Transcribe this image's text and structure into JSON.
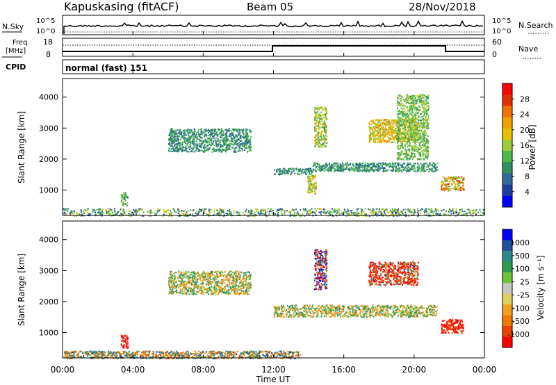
{
  "header": {
    "station": "Kapuskasing (fitACF)",
    "beam": "Beam 05",
    "date": "28/Nov/2018"
  },
  "noise_panel": {
    "left_label": "N.Sky",
    "right_label": "N.Search",
    "ytick_top": "10^5",
    "ytick_bottom": "10^0"
  },
  "freq_panel": {
    "left_label_1": "Freq.",
    "left_label_2": "[MHz]",
    "right_label": "Nave",
    "left_ticks": [
      "18",
      "8"
    ],
    "right_ticks": [
      "60",
      "0"
    ]
  },
  "cpid_panel": {
    "label": "CPID",
    "value": "normal (fast) 151"
  },
  "colors": {
    "power": [
      "#0000ff",
      "#1f3fa0",
      "#2f6a9a",
      "#2f8f5f",
      "#4db84d",
      "#9ccc3a",
      "#e6c200",
      "#f0a000",
      "#f07000",
      "#e03000",
      "#ff0000"
    ],
    "velocity": [
      "#0000ff",
      "#1f4f9f",
      "#2e8a8a",
      "#2f9a4f",
      "#6cc43c",
      "#c8c8c0",
      "#e0d060",
      "#f0a020",
      "#f07800",
      "#e84000",
      "#ff0000"
    ]
  },
  "chart_data": [
    {
      "type": "heatmap",
      "name": "power",
      "ylabel": "Slant Range [km]",
      "yticks": [
        "4000",
        "3000",
        "2000",
        "1000"
      ],
      "ylim": [
        180,
        4600
      ],
      "xlim_hours": [
        0,
        24
      ],
      "colorbar": {
        "label": "Power [dB]",
        "ticks": [
          "28",
          "24",
          "20",
          "16",
          "12",
          "8",
          "4"
        ],
        "range": [
          0,
          32
        ]
      },
      "regions": [
        {
          "t": [
            0.0,
            24.0
          ],
          "r": [
            180,
            420
          ],
          "value": [
            4,
            20
          ]
        },
        {
          "t": [
            3.3,
            3.7
          ],
          "r": [
            520,
            940
          ],
          "value": [
            10,
            16
          ]
        },
        {
          "t": [
            6.0,
            10.7
          ],
          "r": [
            2250,
            3000
          ],
          "value": [
            6,
            14
          ]
        },
        {
          "t": [
            12.0,
            14.2
          ],
          "r": [
            1520,
            1720
          ],
          "value": [
            6,
            14
          ]
        },
        {
          "t": [
            13.9,
            14.4
          ],
          "r": [
            900,
            1500
          ],
          "value": [
            12,
            24
          ]
        },
        {
          "t": [
            14.2,
            21.3
          ],
          "r": [
            1620,
            1900
          ],
          "value": [
            6,
            14
          ]
        },
        {
          "t": [
            14.3,
            15.0
          ],
          "r": [
            2400,
            3700
          ],
          "value": [
            10,
            22
          ]
        },
        {
          "t": [
            17.4,
            20.2
          ],
          "r": [
            2550,
            3300
          ],
          "value": [
            14,
            24
          ]
        },
        {
          "t": [
            19.0,
            20.8
          ],
          "r": [
            2000,
            4100
          ],
          "value": [
            10,
            18
          ]
        },
        {
          "t": [
            21.5,
            22.8
          ],
          "r": [
            1000,
            1450
          ],
          "value": [
            12,
            30
          ]
        }
      ]
    },
    {
      "type": "heatmap",
      "name": "velocity",
      "ylabel": "Slant Range [km]",
      "yticks": [
        "4000",
        "3000",
        "2000",
        "1000"
      ],
      "ylim": [
        180,
        4600
      ],
      "xlim_hours": [
        0,
        24
      ],
      "xticks": [
        "00:00",
        "04:00",
        "08:00",
        "12:00",
        "16:00",
        "20:00",
        "00:00"
      ],
      "xlabel": "Time UT",
      "colorbar": {
        "label": "Velocity [m s⁻¹]",
        "ticks": [
          "1000",
          "500",
          "100",
          "25",
          "-25",
          "-100",
          "-500",
          "-1000"
        ]
      },
      "regions": [
        {
          "t": [
            0.0,
            13.5
          ],
          "r": [
            180,
            420
          ],
          "value": [
            -100,
            100
          ]
        },
        {
          "t": [
            3.3,
            3.7
          ],
          "r": [
            520,
            940
          ],
          "value": [
            -500,
            -100
          ]
        },
        {
          "t": [
            6.0,
            10.7
          ],
          "r": [
            2250,
            3000
          ],
          "value": [
            -25,
            25
          ]
        },
        {
          "t": [
            12.0,
            21.3
          ],
          "r": [
            1520,
            1900
          ],
          "value": [
            -25,
            25
          ]
        },
        {
          "t": [
            14.3,
            15.0
          ],
          "r": [
            2400,
            3700
          ],
          "value": [
            -500,
            500
          ]
        },
        {
          "t": [
            17.4,
            20.2
          ],
          "r": [
            2550,
            3300
          ],
          "value": [
            -500,
            100
          ]
        },
        {
          "t": [
            21.5,
            22.8
          ],
          "r": [
            1000,
            1450
          ],
          "value": [
            -500,
            -100
          ]
        }
      ]
    }
  ]
}
